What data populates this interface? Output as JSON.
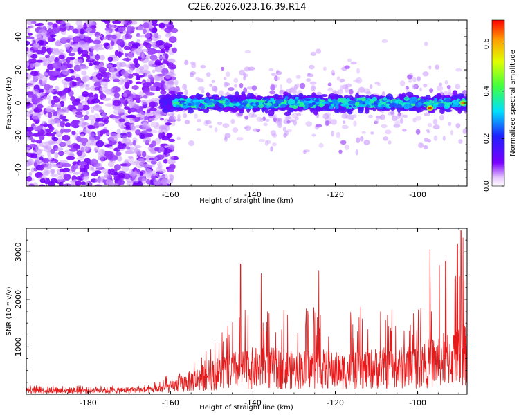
{
  "title": "C2E6.2026.023.16.39.R14",
  "colors": {
    "snr_line": "#e8191a",
    "axis": "#000000",
    "background": "#ffffff"
  },
  "chart_data": [
    {
      "type": "heatmap",
      "name": "spectrogram",
      "xlabel": "Height of straight line (km)",
      "ylabel": "Frequency (Hz)",
      "xlim": [
        -195,
        -88
      ],
      "ylim": [
        -50,
        50
      ],
      "xticks": [
        -180,
        -160,
        -140,
        -120,
        -100
      ],
      "yticks": [
        -40,
        -20,
        0,
        20,
        40
      ],
      "xtick_labels": [
        "-180",
        "-160",
        "-140",
        "-120",
        "-100"
      ],
      "ytick_labels": [
        "-40",
        "-20",
        "0",
        "20",
        "40"
      ],
      "colormap": "rainbow (violet = low, red = high)",
      "colorbar": {
        "label": "Normalized spectral amplitude",
        "range": [
          0.0,
          0.7
        ],
        "ticks": [
          0.0,
          0.2,
          0.4,
          0.6
        ],
        "tick_labels": [
          "0.0",
          "0.2",
          "0.4",
          "0.6"
        ]
      },
      "features": [
        {
          "description": "broadband noise across all frequencies",
          "x_range": [
            -195,
            -160
          ],
          "max_amplitude": 0.1
        },
        {
          "description": "narrow signal band centered near 0 Hz",
          "x_range": [
            -162,
            -88
          ],
          "frequency_range": [
            -8,
            8
          ],
          "typical_amplitude": 0.25,
          "peak_amplitude": 0.65
        },
        {
          "description": "peak amplitude spot",
          "x": -97,
          "frequency": -3,
          "amplitude": 0.65
        },
        {
          "description": "peak amplitude spot",
          "x": -89,
          "frequency": 0,
          "amplitude": 0.6
        }
      ]
    },
    {
      "type": "line",
      "name": "snr",
      "xlabel": "Height of straight line (km)",
      "ylabel": "SNR (10 * v/v)",
      "xlim": [
        -195,
        -88
      ],
      "ylim": [
        0,
        3500
      ],
      "xticks": [
        -180,
        -160,
        -140,
        -120,
        -100
      ],
      "yticks": [
        1000,
        2000,
        3000
      ],
      "xtick_labels": [
        "-180",
        "-160",
        "-140",
        "-120",
        "-100"
      ],
      "ytick_labels": [
        "1000",
        "2000",
        "3000"
      ],
      "series": [
        {
          "name": "SNR",
          "x": [
            -195,
            -185,
            -175,
            -165,
            -160,
            -155,
            -150,
            -145,
            -140,
            -135,
            -130,
            -125,
            -120,
            -115,
            -110,
            -105,
            -100,
            -95,
            -90,
            -88
          ],
          "y_envelope_max": [
            190,
            190,
            190,
            190,
            450,
            700,
            1100,
            1600,
            1900,
            1900,
            1700,
            1900,
            1700,
            1800,
            2000,
            1800,
            1900,
            2700,
            3300,
            3100
          ],
          "y_typical": [
            80,
            80,
            80,
            90,
            150,
            280,
            400,
            500,
            550,
            550,
            500,
            550,
            500,
            500,
            550,
            550,
            600,
            700,
            800,
            900
          ]
        }
      ],
      "peaks": [
        {
          "x": -143,
          "y": 2750
        },
        {
          "x": -138,
          "y": 2550
        },
        {
          "x": -124,
          "y": 2600
        },
        {
          "x": -97,
          "y": 3050
        },
        {
          "x": -89.5,
          "y": 3450
        },
        {
          "x": -89,
          "y": 3300
        }
      ]
    }
  ]
}
